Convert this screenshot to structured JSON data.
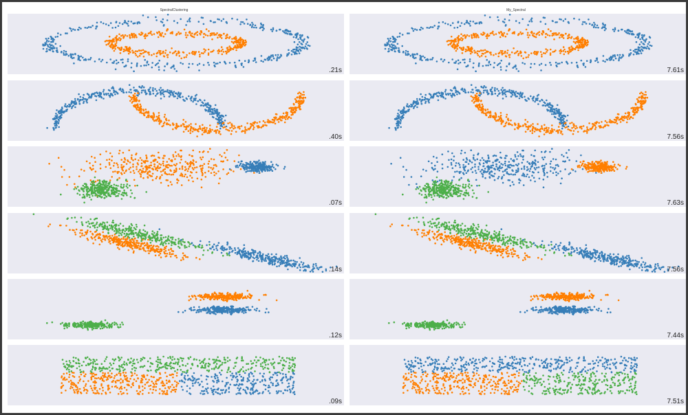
{
  "titles": [
    "SpectralClustering",
    "My_Spectral"
  ],
  "colors": {
    "blue": "#377eb8",
    "orange": "#ff7f00",
    "green": "#4daf4a",
    "panel_bg": "#eaeaf2"
  },
  "chart_data": {
    "type": "scatter",
    "layout": "6 rows × 2 columns grid of scatter panels",
    "grid": true,
    "columns": [
      {
        "title": "SpectralClustering",
        "timings": [
          ".21s",
          ".40s",
          ".07s",
          ".14s",
          ".12s",
          ".09s"
        ]
      },
      {
        "title": "My_Spectral",
        "timings": [
          "7.61s",
          "7.56s",
          "7.63s",
          "7.56s",
          "7.44s",
          "7.51s"
        ]
      }
    ],
    "rows": [
      {
        "dataset": "noisy_circles",
        "left_clusters": [
          "blue",
          "orange"
        ],
        "right_clusters": [
          "blue",
          "orange"
        ]
      },
      {
        "dataset": "noisy_moons",
        "left_clusters": [
          "blue",
          "orange"
        ],
        "right_clusters": [
          "blue",
          "orange"
        ]
      },
      {
        "dataset": "varied",
        "left_clusters": [
          "orange",
          "blue",
          "green"
        ],
        "right_clusters": [
          "blue",
          "orange",
          "green"
        ]
      },
      {
        "dataset": "aniso",
        "left_clusters": [
          "green",
          "orange",
          "blue"
        ],
        "right_clusters": [
          "green",
          "orange",
          "blue"
        ]
      },
      {
        "dataset": "blobs",
        "left_clusters": [
          "orange",
          "blue",
          "green"
        ],
        "right_clusters": [
          "orange",
          "blue",
          "green"
        ]
      },
      {
        "dataset": "no_structure",
        "left_clusters": [
          "green",
          "orange",
          "blue"
        ],
        "right_clusters": [
          "blue",
          "orange",
          "green"
        ]
      }
    ]
  }
}
